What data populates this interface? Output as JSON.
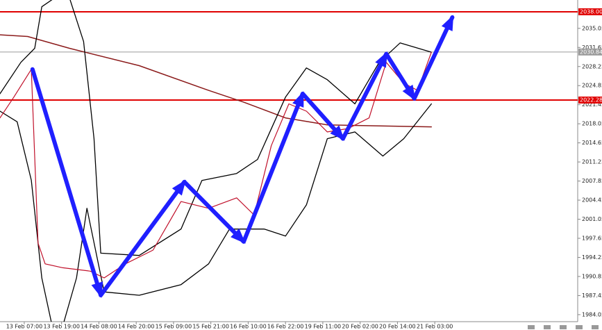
{
  "chart_data": {
    "type": "line",
    "xlim": [
      -0.65,
      14.83
    ],
    "ylim": [
      1982.8,
      2040.1
    ],
    "xticks": [
      {
        "value": 0,
        "label": "13 Feb 07:00"
      },
      {
        "value": 1,
        "label": "13 Feb 19:00"
      },
      {
        "value": 2,
        "label": "14 Feb 08:00"
      },
      {
        "value": 3,
        "label": "14 Feb 20:00"
      },
      {
        "value": 4,
        "label": "15 Feb 09:00"
      },
      {
        "value": 5,
        "label": "15 Feb 21:00"
      },
      {
        "value": 6,
        "label": "16 Feb 10:00"
      },
      {
        "value": 7,
        "label": "16 Feb 22:00"
      },
      {
        "value": 8,
        "label": "19 Feb 11:00"
      },
      {
        "value": 9,
        "label": "20 Feb 02:00"
      },
      {
        "value": 10,
        "label": "20 Feb 14:00"
      },
      {
        "value": 11,
        "label": "21 Feb 03:00"
      }
    ],
    "yticks": [
      2035.05,
      2031.65,
      2028.25,
      2024.85,
      2021.45,
      2018.05,
      2014.65,
      2011.25,
      2007.85,
      2004.45,
      2001.05,
      1997.65,
      1994.25,
      1990.85,
      1987.45,
      1984.05
    ],
    "hlines": [
      {
        "value": 2038.0,
        "label": "2038.00",
        "color": "#e00000"
      },
      {
        "value": 2030.84,
        "color": "#9a9a9a"
      },
      {
        "value": 2022.28,
        "color": "#e00000"
      }
    ],
    "series": [
      {
        "color": "#8b1a1a",
        "width": 1.5,
        "x": [
          -0.65,
          0.09,
          1.21,
          3.08,
          4.94,
          5.88,
          7.0,
          8.12,
          10.91
        ],
        "values": [
          2033.9,
          2033.6,
          2031.5,
          2028.4,
          2024.0,
          2021.9,
          2019.1,
          2017.85,
          2017.5
        ]
      },
      {
        "color": "#000000",
        "width": 1.3,
        "x": [
          -0.65,
          -0.09,
          0.28,
          0.47,
          0.93,
          1.21,
          1.59,
          1.87,
          2.05,
          3.08,
          4.2,
          4.76,
          5.69,
          6.25,
          7.0,
          7.56,
          8.12,
          8.86,
          9.51,
          10.07,
          10.91
        ],
        "values": [
          2023.4,
          2029.0,
          2031.5,
          2038.9,
          2041.0,
          2040.5,
          2032.7,
          2015.4,
          1995.0,
          1994.6,
          1999.3,
          2007.95,
          2009.2,
          2011.7,
          2022.8,
          2028.0,
          2025.9,
          2021.6,
          2029.0,
          2032.45,
          2030.8
        ]
      },
      {
        "color": "#000000",
        "width": 1.3,
        "x": [
          -0.65,
          -0.19,
          0.19,
          0.47,
          0.75,
          1.03,
          1.4,
          1.68,
          2.14,
          3.08,
          4.2,
          4.94,
          5.5,
          6.43,
          7.0,
          7.56,
          8.12,
          8.86,
          9.61,
          10.17,
          10.91
        ],
        "values": [
          2020.3,
          2018.4,
          2008.0,
          1990.6,
          1982.0,
          1982.0,
          1990.6,
          2003.0,
          1988.1,
          1987.5,
          1989.4,
          1993.1,
          1999.3,
          1999.3,
          1998.05,
          2003.6,
          2015.4,
          2016.6,
          2012.3,
          2015.4,
          2021.6
        ]
      },
      {
        "color": "#c0102a",
        "width": 1.2,
        "x": [
          -0.65,
          -0.28,
          0.19,
          0.37,
          0.56,
          1.03,
          1.77,
          2.14,
          2.71,
          3.45,
          4.2,
          4.94,
          5.69,
          6.16,
          6.62,
          7.09,
          7.56,
          8.12,
          8.68,
          9.24,
          9.7,
          10.17,
          10.54,
          10.91
        ],
        "values": [
          2019.1,
          2022.8,
          2027.75,
          1996.8,
          1993.1,
          1992.4,
          1991.8,
          1990.6,
          1993.1,
          1995.55,
          2004.2,
          2003.0,
          2004.85,
          2001.8,
          2014.15,
          2021.6,
          2020.3,
          2016.6,
          2017.2,
          2019.1,
          2029.0,
          2025.3,
          2024.0,
          2030.8
        ]
      },
      {
        "color": "#1f1fff",
        "width": 6,
        "arrow": true,
        "x": [
          0.22,
          2.05,
          4.29,
          5.88,
          7.46,
          8.54,
          9.7,
          10.45,
          11.47
        ],
        "values": [
          2027.75,
          1987.5,
          2007.7,
          1997.05,
          2023.4,
          2015.4,
          2030.5,
          2022.55,
          2037.0
        ]
      }
    ]
  }
}
